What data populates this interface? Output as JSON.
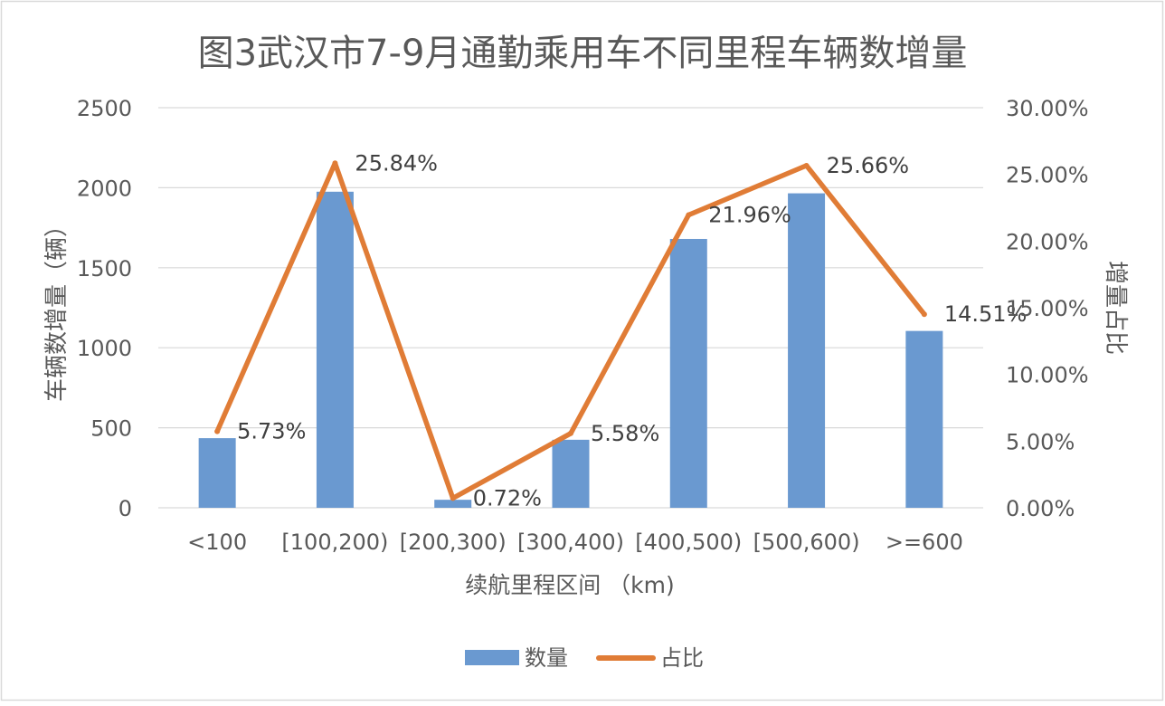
{
  "chart_data": {
    "type": "bar",
    "title": "图3武汉市7-9月通勤乘用车不同里程车辆数增量",
    "xlabel": "续航里程区间 （km)",
    "ylabel": "车辆数增量（辆）",
    "y2label": "增量占比",
    "categories": [
      "<100",
      "[100,200)",
      "[200,300)",
      "[300,400)",
      "[400,500)",
      "[500,600)",
      ">=600"
    ],
    "ylim": [
      0,
      2500
    ],
    "y_ticks": [
      "0",
      "500",
      "1000",
      "1500",
      "2000",
      "2500"
    ],
    "y2lim": [
      0,
      30
    ],
    "y2_ticks": [
      "0.00%",
      "5.00%",
      "10.00%",
      "15.00%",
      "20.00%",
      "25.00%",
      "30.00%"
    ],
    "grid": true,
    "legend_position": "bottom",
    "series": [
      {
        "name": "数量",
        "type": "bar",
        "axis": "left",
        "color": "#6a99d0",
        "values": [
          435,
          1975,
          50,
          425,
          1680,
          1965,
          1105
        ]
      },
      {
        "name": "占比",
        "type": "line",
        "axis": "right",
        "color": "#e07c36",
        "values": [
          5.73,
          25.84,
          0.72,
          5.58,
          21.96,
          25.66,
          14.51
        ],
        "labels": [
          "5.73%",
          "25.84%",
          "0.72%",
          "5.58%",
          "21.96%",
          "25.66%",
          "14.51%"
        ]
      }
    ]
  }
}
